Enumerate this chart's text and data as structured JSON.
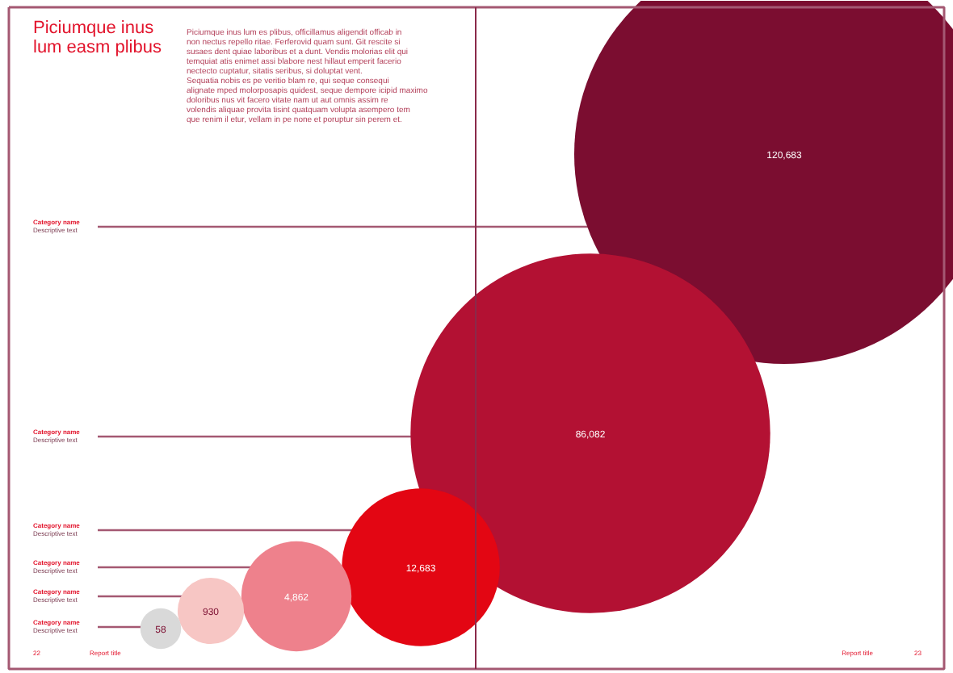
{
  "chart_data": {
    "type": "other",
    "title": "Piciumque inus lum easm plibus",
    "subtitle": "Piciumque inus lum es plibus, officillamus aligendit officab in non nectus repello ritae. Ferferovid quam sunt. Git rescite si susaes dent quiae laboribus et a dunt. Vendis molorias elit qui temquiat atis enimet assi blabore nest hillaut emperit facerio nectecto cuptatur, sitatis seribus, si doluptat vent.\nSequatia nobis es pe veritio blam re, qui seque consequi alignate mped molorposapis quidest, seque dempore icipid maximo doloribus nus vit facero vitate nam ut aut omnis assim re volendis aliquae provita tisint quatquam volupta asempero tem que renim il etur, vellam in pe none et poruptur sin perem et.",
    "categories": [
      "Category name\nDescriptive text",
      "Category name\nDescriptive text",
      "Category name\nDescriptive text",
      "Category name\nDescriptive text",
      "Category name\nDescriptive text",
      "Category name\nDescriptive text"
    ],
    "values": [
      120683,
      86082,
      12683,
      4862,
      930,
      58
    ],
    "colors": [
      "#7b0d30",
      "#b31133",
      "#e30613",
      "#ee818c",
      "#f7c6c4",
      "#d9d9d9"
    ],
    "value_labels": [
      "120,683",
      "86,082",
      "12,683",
      "4,862",
      "930",
      "58"
    ],
    "annotations": [
      "22",
      "Report title",
      "Report title",
      "23"
    ]
  }
}
